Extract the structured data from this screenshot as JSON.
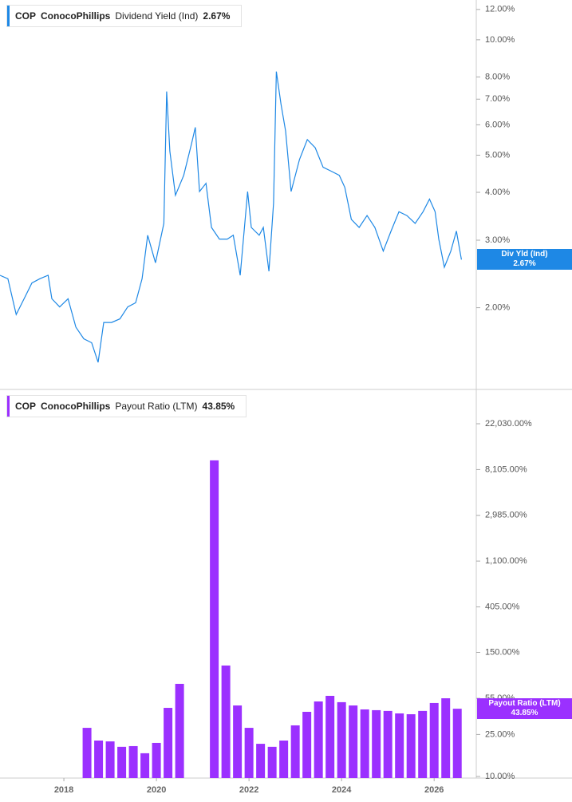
{
  "chart_data": [
    {
      "type": "line",
      "ticker": "COP",
      "company": "ConocoPhillips",
      "badge_label": "Div Yld (Ind)",
      "current": {
        "value": 2.67,
        "label": "2.67%"
      },
      "log": true,
      "xlim": [
        2016.62,
        2026.91
      ],
      "ylim": [
        1.23,
        12.7
      ],
      "yticks": [
        {
          "value": 2,
          "label": "2.00%"
        },
        {
          "value": 3,
          "label": "3.00%"
        },
        {
          "value": 4,
          "label": "4.00%"
        },
        {
          "value": 5,
          "label": "5.00%"
        },
        {
          "value": 6,
          "label": "6.00%"
        },
        {
          "value": 7,
          "label": "7.00%"
        },
        {
          "value": 8,
          "label": "8.00%"
        },
        {
          "value": 10,
          "label": "10.00%"
        },
        {
          "value": 12,
          "label": "12.00%"
        }
      ],
      "x": [
        2016.62,
        2016.79,
        2016.97,
        2017.14,
        2017.31,
        2017.48,
        2017.66,
        2017.74,
        2017.91,
        2018.09,
        2018.26,
        2018.43,
        2018.6,
        2018.74,
        2018.86,
        2019.03,
        2019.21,
        2019.38,
        2019.55,
        2019.69,
        2019.81,
        2019.98,
        2020.16,
        2020.22,
        2020.29,
        2020.41,
        2020.59,
        2020.76,
        2020.84,
        2020.93,
        2021.07,
        2021.19,
        2021.36,
        2021.53,
        2021.66,
        2021.81,
        2021.97,
        2022.05,
        2022.22,
        2022.31,
        2022.43,
        2022.53,
        2022.59,
        2022.69,
        2022.79,
        2022.91,
        2023.09,
        2023.26,
        2023.43,
        2023.6,
        2023.78,
        2023.95,
        2024.07,
        2024.21,
        2024.38,
        2024.55,
        2024.72,
        2024.9,
        2025.07,
        2025.24,
        2025.41,
        2025.59,
        2025.76,
        2025.9,
        2026.02,
        2026.1,
        2026.22,
        2026.36,
        2026.48,
        2026.59
      ],
      "series": [
        {
          "name": "Dividend Yield (Ind)",
          "color": "#1e88e5",
          "values": [
            2.43,
            2.38,
            1.92,
            2.11,
            2.32,
            2.38,
            2.43,
            2.11,
            2.01,
            2.11,
            1.78,
            1.66,
            1.62,
            1.44,
            1.83,
            1.83,
            1.87,
            2.01,
            2.06,
            2.38,
            3.09,
            2.62,
            3.32,
            7.33,
            5.12,
            3.93,
            4.43,
            5.37,
            5.91,
            4.02,
            4.22,
            3.24,
            3.02,
            3.02,
            3.09,
            2.43,
            4.02,
            3.24,
            3.09,
            3.24,
            2.49,
            3.75,
            8.26,
            6.8,
            5.78,
            4.02,
            4.87,
            5.49,
            5.23,
            4.65,
            4.54,
            4.43,
            4.12,
            3.4,
            3.24,
            3.48,
            3.24,
            2.81,
            3.17,
            3.56,
            3.48,
            3.32,
            3.56,
            3.84,
            3.56,
            3.02,
            2.55,
            2.81,
            3.17,
            2.67
          ]
        }
      ]
    },
    {
      "type": "bar",
      "ticker": "COP",
      "company": "ConocoPhillips",
      "current": {
        "value": 43.85,
        "label": "43.85%"
      },
      "log": true,
      "xlim": [
        2016.62,
        2026.91
      ],
      "ylim": [
        9.66,
        45000
      ],
      "xticks": [
        2018,
        2020,
        2022,
        2024,
        2026
      ],
      "yticks": [
        {
          "value": 10,
          "label": "10.00%"
        },
        {
          "value": 25,
          "label": "25.00%"
        },
        {
          "value": 55,
          "label": "55.00%"
        },
        {
          "value": 150,
          "label": "150.00%"
        },
        {
          "value": 405,
          "label": "405.00%"
        },
        {
          "value": 1100,
          "label": "1,100.00%"
        },
        {
          "value": 2985,
          "label": "2,985.00%"
        },
        {
          "value": 8105,
          "label": "8,105.00%"
        },
        {
          "value": 22030,
          "label": "22,030.00%"
        }
      ],
      "x": [
        2018.5,
        2018.75,
        2019,
        2019.25,
        2019.5,
        2019.75,
        2020,
        2020.25,
        2020.5,
        2020.75,
        2021,
        2021.25,
        2021.5,
        2021.75,
        2022,
        2022.25,
        2022.5,
        2022.75,
        2023,
        2023.25,
        2023.5,
        2023.75,
        2024,
        2024.25,
        2024.5,
        2024.75,
        2025,
        2025.25,
        2025.5,
        2025.75,
        2026,
        2026.25,
        2026.5
      ],
      "series": [
        {
          "name": "Payout Ratio (LTM)",
          "color": "#9b30ff",
          "values": [
            28.9,
            21.9,
            21.5,
            19.1,
            19.4,
            16.6,
            20.8,
            44.7,
            75.5,
            null,
            null,
            9910,
            112.6,
            47.1,
            28.9,
            20.4,
            19.1,
            21.9,
            30.5,
            41.0,
            51.4,
            58.1,
            50.6,
            47.1,
            43.2,
            42.5,
            41.8,
            39.6,
            38.9,
            41.8,
            49.7,
            55.1,
            43.85
          ]
        }
      ]
    }
  ]
}
